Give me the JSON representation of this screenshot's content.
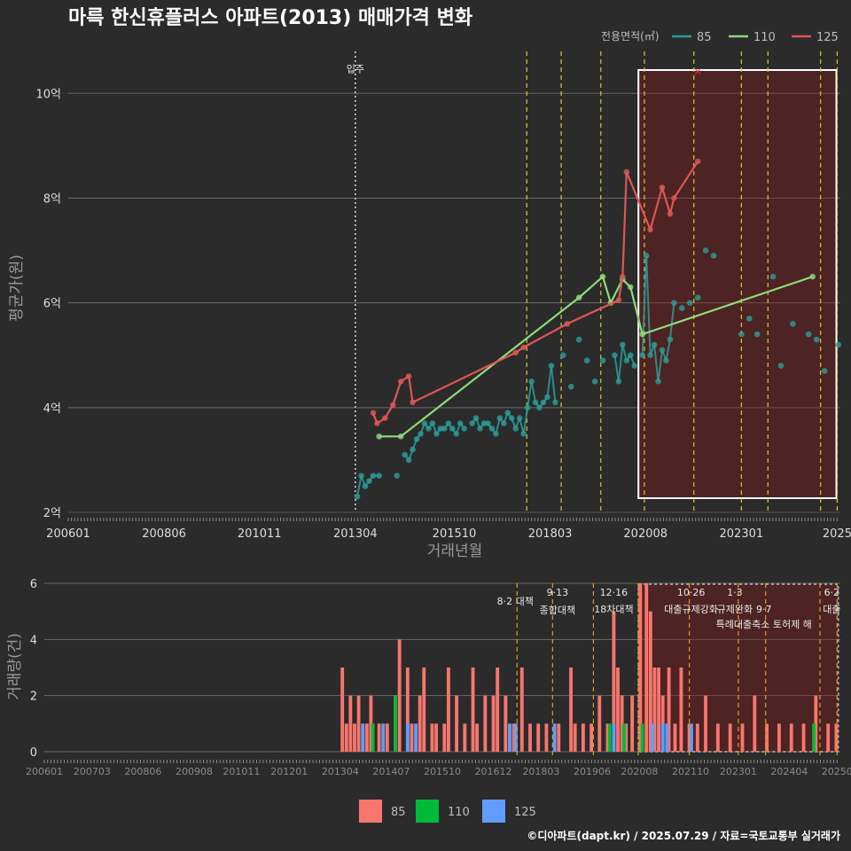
{
  "chart_data": [
    {
      "type": "line",
      "title": "마륵 한신휴플러스 아파트(2013) 매매가격 변화",
      "xlabel": "거래년월",
      "ylabel": "평균가(원)",
      "xlim": [
        2006.0,
        2025.5
      ],
      "ylim": [
        2.0,
        10.8
      ],
      "x_ticks": [
        {
          "x": 2006.0,
          "label": "200601"
        },
        {
          "x": 2008.42,
          "label": "200806"
        },
        {
          "x": 2010.83,
          "label": "201011"
        },
        {
          "x": 2013.25,
          "label": "201304"
        },
        {
          "x": 2015.75,
          "label": "201510"
        },
        {
          "x": 2018.17,
          "label": "201803"
        },
        {
          "x": 2020.58,
          "label": "202008"
        },
        {
          "x": 2023.0,
          "label": "202301"
        },
        {
          "x": 2025.42,
          "label": "2025"
        }
      ],
      "y_ticks": [
        {
          "y": 2,
          "label": "2억"
        },
        {
          "y": 4,
          "label": "4억"
        },
        {
          "y": 6,
          "label": "6억"
        },
        {
          "y": 8,
          "label": "8억"
        },
        {
          "y": 10,
          "label": "10억"
        }
      ],
      "legend": {
        "title": "전용면적(㎡)",
        "position": "top-right"
      },
      "series": [
        {
          "name": "85",
          "color": "#2a9d9a",
          "x": [
            2013.3,
            2013.4,
            2013.5,
            2013.6,
            2013.7,
            2013.85,
            2014.3,
            2014.5,
            2014.6,
            2014.7,
            2014.8,
            2014.9,
            2015.0,
            2015.1,
            2015.2,
            2015.3,
            2015.4,
            2015.5,
            2015.6,
            2015.7,
            2015.8,
            2015.9,
            2016.0,
            2016.2,
            2016.3,
            2016.4,
            2016.5,
            2016.6,
            2016.7,
            2016.8,
            2016.9,
            2017.0,
            2017.1,
            2017.2,
            2017.3,
            2017.4,
            2017.5,
            2017.6,
            2017.7,
            2017.8,
            2017.9,
            2018.0,
            2018.1,
            2018.2,
            2018.3,
            2018.5,
            2018.7,
            2018.9,
            2019.1,
            2019.3,
            2019.5,
            2019.8,
            2019.9,
            2020.0,
            2020.1,
            2020.2,
            2020.3,
            2020.5,
            2020.6,
            2020.7,
            2020.8,
            2020.9,
            2021.0,
            2021.1,
            2021.2,
            2021.3,
            2021.5,
            2021.7,
            2021.9,
            2022.1,
            2022.3,
            2023.0,
            2023.2,
            2023.4,
            2023.8,
            2024.0,
            2024.3,
            2024.7,
            2024.9,
            2025.1,
            2025.45
          ],
          "y": [
            2.3,
            2.7,
            2.5,
            2.6,
            2.7,
            2.7,
            2.7,
            3.1,
            3.0,
            3.2,
            3.4,
            3.5,
            3.7,
            3.6,
            3.7,
            3.5,
            3.6,
            3.6,
            3.7,
            3.6,
            3.5,
            3.7,
            3.6,
            3.7,
            3.8,
            3.6,
            3.7,
            3.7,
            3.6,
            3.5,
            3.8,
            3.7,
            3.9,
            3.8,
            3.6,
            3.8,
            3.5,
            4.0,
            4.5,
            4.1,
            4.0,
            4.1,
            4.2,
            4.8,
            4.1,
            5.0,
            4.4,
            5.3,
            4.9,
            4.5,
            4.9,
            5.0,
            4.5,
            5.2,
            4.9,
            5.0,
            4.8,
            5.0,
            6.9,
            5.0,
            5.2,
            4.5,
            5.1,
            4.9,
            5.3,
            6.0,
            5.9,
            6.0,
            6.1,
            7.0,
            6.9,
            5.4,
            5.7,
            5.4,
            6.5,
            4.8,
            5.6,
            5.4,
            5.3,
            4.7,
            5.2
          ]
        },
        {
          "name": "110",
          "color": "#8edb78",
          "x": [
            2013.85,
            2014.4,
            2018.9,
            2019.5,
            2019.7,
            2020.0,
            2020.2,
            2020.5,
            2024.8
          ],
          "y": [
            3.45,
            3.45,
            6.1,
            6.5,
            6.0,
            6.45,
            6.3,
            5.4,
            6.5
          ]
        },
        {
          "name": "125",
          "color": "#e05555",
          "x": [
            2013.7,
            2013.8,
            2014.0,
            2014.2,
            2014.4,
            2014.6,
            2014.7,
            2017.3,
            2017.5,
            2018.6,
            2019.9,
            2020.0,
            2020.1,
            2020.7,
            2021.0,
            2021.2,
            2021.3,
            2021.9
          ],
          "y": [
            3.9,
            3.7,
            3.8,
            4.05,
            4.5,
            4.6,
            4.1,
            5.05,
            5.15,
            5.6,
            6.05,
            6.5,
            8.5,
            7.4,
            8.2,
            7.7,
            8.0,
            8.7
          ]
        }
      ],
      "annotations": [
        {
          "x": 2013.25,
          "label": "입주"
        }
      ]
    },
    {
      "type": "bar",
      "ylabel": "거래량(건)",
      "xlim": [
        2006.0,
        2025.5
      ],
      "ylim": [
        0,
        6
      ],
      "y_ticks": [
        0,
        2,
        4,
        6
      ],
      "x_ticks": [
        {
          "x": 2006.0,
          "label": "200601"
        },
        {
          "x": 2007.17,
          "label": "200703"
        },
        {
          "x": 2008.42,
          "label": "200806"
        },
        {
          "x": 2009.67,
          "label": "200908"
        },
        {
          "x": 2010.83,
          "label": "201011"
        },
        {
          "x": 2012.0,
          "label": "201201"
        },
        {
          "x": 2013.25,
          "label": "201304"
        },
        {
          "x": 2014.5,
          "label": "201407"
        },
        {
          "x": 2015.75,
          "label": "201510"
        },
        {
          "x": 2017.0,
          "label": "201612"
        },
        {
          "x": 2018.17,
          "label": "201803"
        },
        {
          "x": 2019.42,
          "label": "201906"
        },
        {
          "x": 2020.58,
          "label": "202008"
        },
        {
          "x": 2021.83,
          "label": "202110"
        },
        {
          "x": 2023.0,
          "label": "202301"
        },
        {
          "x": 2024.25,
          "label": "202404"
        },
        {
          "x": 2025.42,
          "label": "20250"
        }
      ],
      "legend": {
        "position": "bottom",
        "entries": [
          "85",
          "110",
          "125"
        ]
      },
      "series": [
        {
          "name": "85",
          "color": "#f8766d",
          "x": [
            2013.3,
            2013.4,
            2013.5,
            2013.6,
            2013.7,
            2013.9,
            2014.0,
            2014.2,
            2014.4,
            2014.6,
            2014.7,
            2014.9,
            2015.0,
            2015.2,
            2015.3,
            2015.5,
            2015.6,
            2015.8,
            2015.9,
            2016.1,
            2016.3,
            2016.5,
            2016.6,
            2016.8,
            2017.0,
            2017.1,
            2017.3,
            2017.5,
            2017.7,
            2017.9,
            2018.1,
            2018.3,
            2018.6,
            2018.9,
            2019.0,
            2019.2,
            2019.4,
            2019.6,
            2019.8,
            2019.95,
            2020.05,
            2020.15,
            2020.25,
            2020.4,
            2020.6,
            2020.75,
            2020.85,
            2020.95,
            2021.05,
            2021.15,
            2021.3,
            2021.45,
            2021.6,
            2021.8,
            2022.0,
            2022.2,
            2022.5,
            2022.8,
            2023.1,
            2023.4,
            2023.7,
            2024.0,
            2024.3,
            2024.6,
            2024.9,
            2025.2,
            2025.4
          ],
          "values": [
            3,
            1,
            2,
            1,
            2,
            1,
            2,
            1,
            1,
            2,
            4,
            3,
            1,
            2,
            3,
            1,
            1,
            1,
            3,
            2,
            1,
            3,
            1,
            2,
            2,
            3,
            2,
            1,
            3,
            1,
            1,
            1,
            1,
            3,
            1,
            1,
            1,
            2,
            1,
            5,
            3,
            2,
            1,
            2,
            6,
            6,
            5,
            3,
            3,
            2,
            3,
            1,
            3,
            1,
            1,
            2,
            1,
            1,
            1,
            2,
            1,
            1,
            1,
            1,
            2,
            1,
            1
          ]
        },
        {
          "name": "110",
          "color": "#00ba38",
          "x": [
            2014.05,
            2014.6,
            2019.85,
            2020.2,
            2020.65,
            2024.85
          ],
          "values": [
            1,
            2,
            1,
            1,
            1,
            1
          ]
        },
        {
          "name": "125",
          "color": "#619cff",
          "x": [
            2013.8,
            2014.3,
            2014.9,
            2015.1,
            2017.4,
            2017.55,
            2018.5,
            2019.95,
            2020.9,
            2021.15,
            2021.25,
            2021.85
          ],
          "values": [
            1,
            1,
            1,
            1,
            1,
            1,
            1,
            1,
            1,
            1,
            1,
            1
          ]
        }
      ],
      "annotations": [
        {
          "x": 2017.58,
          "label": "8·2 대책"
        },
        {
          "x": 2018.7,
          "label": "9·13",
          "label2": "종합대책"
        },
        {
          "x": 2019.95,
          "label": "12·16",
          "label2": "18차대책"
        },
        {
          "x": 2021.8,
          "label": "10·26",
          "label2": "대출규제강화"
        },
        {
          "x": 2023.0,
          "label": "1·3",
          "label2": "규제완화"
        },
        {
          "x": 2023.67,
          "label2b": "9·7",
          "label3": "특례대출축소 토허제 해"
        },
        {
          "x": 2025.42,
          "label": "6·2",
          "label2": "대출"
        }
      ]
    }
  ],
  "credit": "©디아파트(dapt.kr) / 2025.07.29 / 자료=국토교통부 실거래가"
}
